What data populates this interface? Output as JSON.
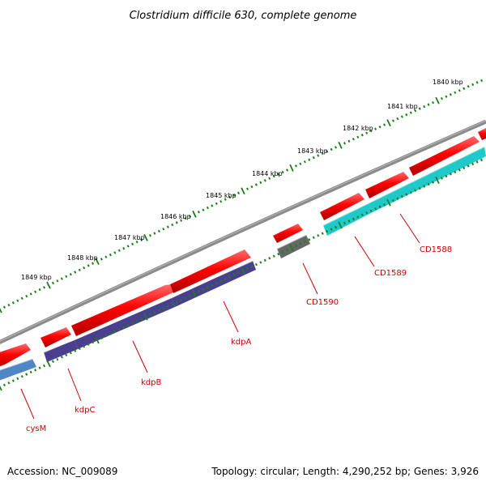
{
  "title": "Clostridium difficile 630, complete genome",
  "footer": {
    "accession": "Accession: NC_009089",
    "summary": "Topology: circular; Length: 4,290,252 bp; Genes: 3,926"
  },
  "kbp_labels": [
    "1840 kbp",
    "1841 kbp",
    "1842 kbp",
    "1843 kbp",
    "1844 kbp",
    "1845 kbp",
    "1846 kbp",
    "1847 kbp",
    "1848 kbp",
    "1849 kbp"
  ],
  "genes": [
    {
      "id": "cysM",
      "label": "cysM",
      "forward_color": "#ff0000",
      "cog_color": "#4f86c6"
    },
    {
      "id": "kdpC",
      "label": "kdpC",
      "forward_color": "#ff0000",
      "cog_color": "#4a3f8f"
    },
    {
      "id": "kdpB",
      "label": "kdpB",
      "forward_color": "#ff0000",
      "cog_color": "#4a3f8f"
    },
    {
      "id": "kdpA",
      "label": "kdpA",
      "forward_color": "#ff0000",
      "cog_color": "#4a3f8f"
    },
    {
      "id": "CD1590",
      "label": "CD1590",
      "forward_color": "#ff0000",
      "cog_color": "#666666"
    },
    {
      "id": "CD1589",
      "label": "CD1589",
      "forward_color": "#ff0000",
      "cog_color": "#1fc9c9"
    },
    {
      "id": "CD1588",
      "label": "CD1588",
      "forward_color": "#ff0000",
      "cog_color": "#1fc9c9"
    }
  ],
  "colors": {
    "backbone": "#808080",
    "ticks": "#1a7f1a",
    "label_text": "#cc0000"
  }
}
